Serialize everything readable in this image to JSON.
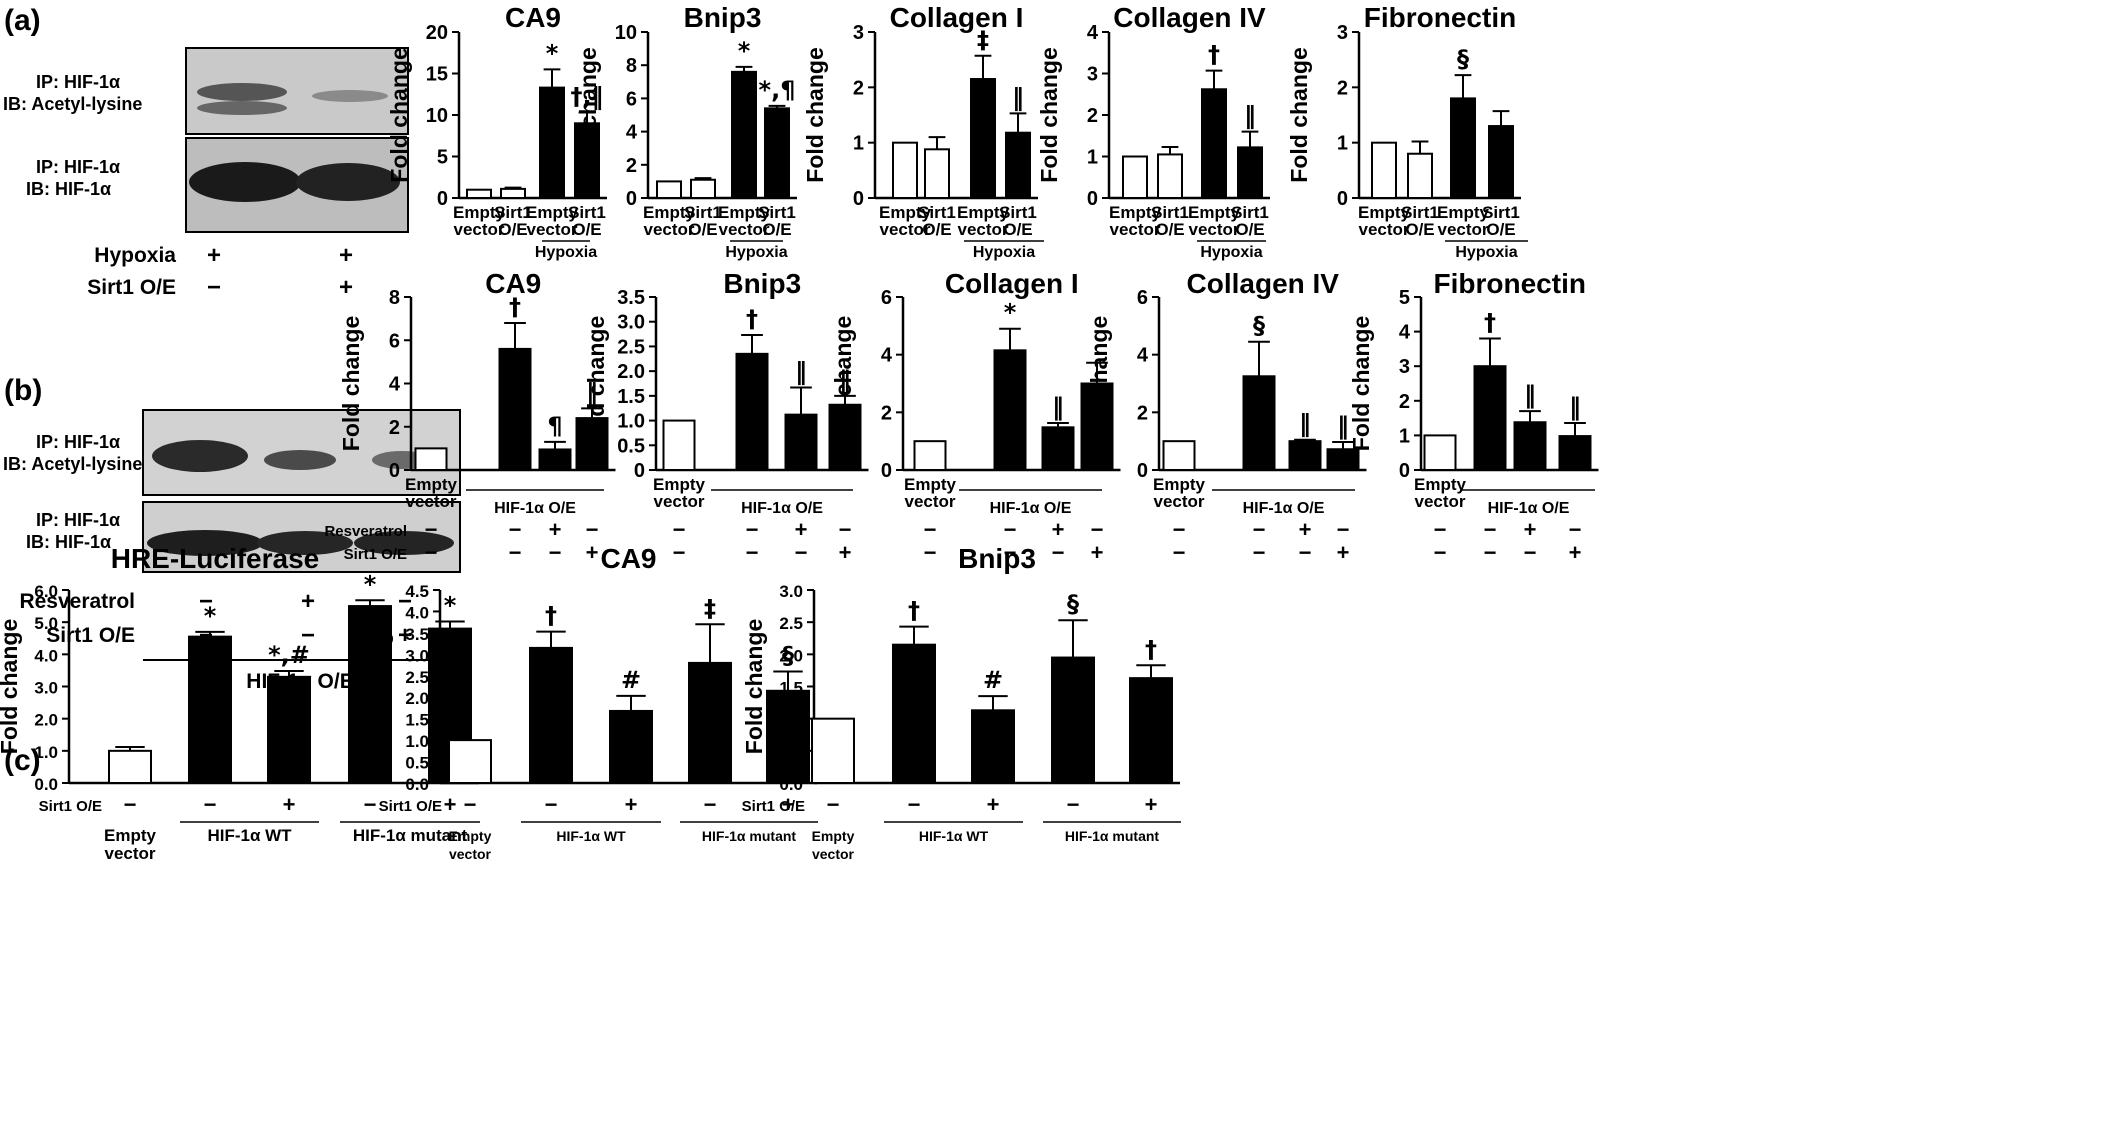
{
  "panels": [
    {
      "label": "(a)"
    },
    {
      "label": "(b)"
    },
    {
      "label": "(c)"
    }
  ],
  "blots": [
    {
      "id": "a",
      "rows": [
        {
          "ip": "IP: HIF-1α",
          "ib": "IB: Acetyl-lysine"
        },
        {
          "ip": "IP: HIF-1α",
          "ib": "IB: HIF-1α"
        }
      ],
      "treatments": [
        {
          "name": "Hypoxia",
          "marks": [
            "+",
            "+"
          ]
        },
        {
          "name": "Sirt1 O/E",
          "marks": [
            "−",
            "+"
          ]
        }
      ],
      "group": ""
    },
    {
      "id": "b",
      "rows": [
        {
          "ip": "IP: HIF-1α",
          "ib": "IB: Acetyl-lysine"
        },
        {
          "ip": "IP: HIF-1α",
          "ib": "IB: HIF-1α"
        }
      ],
      "treatments": [
        {
          "name": "Resveratrol",
          "marks": [
            "−",
            "+",
            "−"
          ]
        },
        {
          "name": "Sirt1 O/E",
          "marks": [
            "−",
            "−",
            "+"
          ]
        }
      ],
      "group": "HIF-1α O/E"
    }
  ],
  "chart_data": [
    {
      "id": "a1",
      "type": "bar",
      "title": "CA9",
      "ylabel": "Fold change",
      "ylim": [
        0,
        20
      ],
      "yticks": [
        "0",
        "5",
        "10",
        "15",
        "20"
      ],
      "categories": [
        "Empty vector",
        "Sirt1 O/E",
        "Empty vector",
        "Sirt1 O/E"
      ],
      "values": [
        1.0,
        1.1,
        13.3,
        9.0
      ],
      "errors": [
        0,
        0.15,
        2.2,
        1.3
      ],
      "fills": [
        "#ffffff",
        "#ffffff",
        "#000000",
        "#000000"
      ],
      "signif": [
        "",
        "",
        "*",
        "†,‖"
      ],
      "group_label": "Hypoxia"
    },
    {
      "id": "a2",
      "type": "bar",
      "title": "Bnip3",
      "ylabel": "Fold change",
      "ylim": [
        0,
        10
      ],
      "yticks": [
        "0",
        "2",
        "4",
        "6",
        "8",
        "10"
      ],
      "categories": [
        "Empty vector",
        "Sirt1 O/E",
        "Empty vector",
        "Sirt1 O/E"
      ],
      "values": [
        1.0,
        1.1,
        7.6,
        5.4
      ],
      "errors": [
        0,
        0.1,
        0.3,
        0.15
      ],
      "fills": [
        "#ffffff",
        "#ffffff",
        "#000000",
        "#000000"
      ],
      "signif": [
        "",
        "",
        "*",
        "*,¶"
      ],
      "group_label": "Hypoxia"
    },
    {
      "id": "a3",
      "type": "bar",
      "title": "Collagen I",
      "ylabel": "Fold change",
      "ylim": [
        0,
        3
      ],
      "yticks": [
        "0",
        "1",
        "2",
        "3"
      ],
      "categories": [
        "Empty vector",
        "Sirt1 O/E",
        "Empty vector",
        "Sirt1 O/E"
      ],
      "values": [
        1.0,
        0.88,
        2.15,
        1.18
      ],
      "errors": [
        0,
        0.22,
        0.42,
        0.35
      ],
      "fills": [
        "#ffffff",
        "#ffffff",
        "#000000",
        "#000000"
      ],
      "signif": [
        "",
        "",
        "‡",
        "‖"
      ],
      "group_label": "Hypoxia"
    },
    {
      "id": "a4",
      "type": "bar",
      "title": "Collagen IV",
      "ylabel": "Fold change",
      "ylim": [
        0,
        4
      ],
      "yticks": [
        "0",
        "1",
        "2",
        "3",
        "4"
      ],
      "categories": [
        "Empty vector",
        "Sirt1 O/E",
        "Empty vector",
        "Sirt1 O/E"
      ],
      "values": [
        1.0,
        1.05,
        2.62,
        1.22
      ],
      "errors": [
        0,
        0.18,
        0.45,
        0.38
      ],
      "fills": [
        "#ffffff",
        "#ffffff",
        "#000000",
        "#000000"
      ],
      "signif": [
        "",
        "",
        "†",
        "‖"
      ],
      "group_label": "Hypoxia"
    },
    {
      "id": "a5",
      "type": "bar",
      "title": "Fibronectin",
      "ylabel": "Fold change",
      "ylim": [
        0,
        3
      ],
      "yticks": [
        "0",
        "1",
        "2",
        "3"
      ],
      "categories": [
        "Empty vector",
        "Sirt1 O/E",
        "Empty vector",
        "Sirt1 O/E"
      ],
      "values": [
        1.0,
        0.8,
        1.8,
        1.3
      ],
      "errors": [
        0,
        0.22,
        0.42,
        0.27
      ],
      "fills": [
        "#ffffff",
        "#ffffff",
        "#000000",
        "#000000"
      ],
      "signif": [
        "",
        "",
        "§",
        ""
      ],
      "group_label": "Hypoxia"
    },
    {
      "id": "b1",
      "type": "bar",
      "title": "CA9",
      "ylabel": "Fold change",
      "ylim": [
        0,
        8
      ],
      "yticks": [
        "0",
        "2",
        "4",
        "6",
        "8"
      ],
      "categories": [
        "Empty vector",
        "",
        "",
        ""
      ],
      "values": [
        1.0,
        5.6,
        0.95,
        2.4
      ],
      "errors": [
        0,
        1.2,
        0.35,
        0.45
      ],
      "fills": [
        "#ffffff",
        "#000000",
        "#000000",
        "#000000"
      ],
      "signif": [
        "",
        "†",
        "¶",
        "‖"
      ],
      "group_label": "HIF-1α  O/E",
      "treatments": [
        {
          "name": "Resveratrol",
          "marks": [
            "−",
            "−",
            "+",
            "−"
          ]
        },
        {
          "name": "Sirt1 O/E",
          "marks": [
            "−",
            "−",
            "−",
            "+"
          ]
        }
      ]
    },
    {
      "id": "b2",
      "type": "bar",
      "title": "Bnip3",
      "ylabel": "Fold change",
      "ylim": [
        0,
        3.5
      ],
      "yticks": [
        "0",
        "0.5",
        "1.0",
        "1.5",
        "2.0",
        "2.5",
        "3.0",
        "3.5"
      ],
      "categories": [
        "",
        "",
        "",
        ""
      ],
      "values": [
        1.0,
        2.35,
        1.12,
        1.32
      ],
      "errors": [
        0,
        0.38,
        0.55,
        0.18
      ],
      "fills": [
        "#ffffff",
        "#000000",
        "#000000",
        "#000000"
      ],
      "signif": [
        "",
        "†",
        "‖",
        "‖"
      ],
      "group_label": "HIF-1α  O/E",
      "treatments": [
        {
          "name": "",
          "marks": [
            "−",
            "−",
            "+",
            "−"
          ]
        },
        {
          "name": "",
          "marks": [
            "−",
            "−",
            "−",
            "+"
          ]
        }
      ]
    },
    {
      "id": "b3",
      "type": "bar",
      "title": "Collagen I",
      "ylabel": "Fold change",
      "ylim": [
        0,
        6
      ],
      "yticks": [
        "0",
        "2",
        "4",
        "6"
      ],
      "categories": [
        "Empty vector",
        "",
        "",
        ""
      ],
      "values": [
        1.0,
        4.15,
        1.48,
        3.0
      ],
      "errors": [
        0,
        0.75,
        0.15,
        0.72
      ],
      "fills": [
        "#ffffff",
        "#000000",
        "#000000",
        "#000000"
      ],
      "signif": [
        "",
        "*",
        "‖",
        ""
      ],
      "group_label": "HIF-1α  O/E",
      "treatments": [
        {
          "name": "",
          "marks": [
            "−",
            "−",
            "+",
            "−"
          ]
        },
        {
          "name": "",
          "marks": [
            "−",
            "−",
            "−",
            "+"
          ]
        }
      ]
    },
    {
      "id": "b4",
      "type": "bar",
      "title": "Collagen IV",
      "ylabel": "Fold change",
      "ylim": [
        0,
        6
      ],
      "yticks": [
        "0",
        "2",
        "4",
        "6"
      ],
      "categories": [
        "Empty vector",
        "",
        "",
        ""
      ],
      "values": [
        1.0,
        3.25,
        1.0,
        0.72
      ],
      "errors": [
        0,
        1.2,
        0.05,
        0.25
      ],
      "fills": [
        "#ffffff",
        "#000000",
        "#000000",
        "#000000"
      ],
      "signif": [
        "",
        "§",
        "‖",
        "‖"
      ],
      "group_label": "HIF-1α  O/E",
      "treatments": [
        {
          "name": "",
          "marks": [
            "−",
            "−",
            "+",
            "−"
          ]
        },
        {
          "name": "",
          "marks": [
            "−",
            "−",
            "−",
            "+"
          ]
        }
      ]
    },
    {
      "id": "b5",
      "type": "bar",
      "title": "Fibronectin",
      "ylabel": "Fold change",
      "ylim": [
        0,
        5
      ],
      "yticks": [
        "0",
        "1",
        "2",
        "3",
        "4",
        "5"
      ],
      "categories": [
        "Empty vector",
        "",
        "",
        ""
      ],
      "values": [
        1.0,
        3.0,
        1.38,
        0.98
      ],
      "errors": [
        0,
        0.8,
        0.32,
        0.38
      ],
      "fills": [
        "#ffffff",
        "#000000",
        "#000000",
        "#000000"
      ],
      "signif": [
        "",
        "†",
        "‖",
        "‖"
      ],
      "group_label": "HIF-1α  O/E",
      "treatments": [
        {
          "name": "",
          "marks": [
            "−",
            "−",
            "+",
            "−"
          ]
        },
        {
          "name": "",
          "marks": [
            "−",
            "−",
            "−",
            "+"
          ]
        }
      ]
    },
    {
      "id": "c1",
      "type": "bar",
      "title": "HRE-Luciferase",
      "ylabel": "Fold change",
      "ylim": [
        0,
        6
      ],
      "yticks": [
        "0.0",
        "1.0",
        "2.0",
        "3.0",
        "4.0",
        "5.0",
        "6.0"
      ],
      "categories": [
        "Empty vector",
        "",
        "",
        "",
        ""
      ],
      "values": [
        1.0,
        4.55,
        3.3,
        5.5,
        4.8
      ],
      "errors": [
        0.12,
        0.15,
        0.18,
        0.18,
        0.22
      ],
      "fills": [
        "#ffffff",
        "#000000",
        "#000000",
        "#000000",
        "#000000"
      ],
      "signif": [
        "",
        "*",
        "*,#",
        "*",
        "*"
      ],
      "groups": [
        "HIF-1α WT",
        "HIF-1α mutant"
      ],
      "treatments": [
        {
          "name": "Sirt1 O/E",
          "marks": [
            "−",
            "−",
            "+",
            "−",
            "+"
          ]
        }
      ]
    },
    {
      "id": "c2",
      "type": "bar",
      "title": "CA9",
      "ylabel": "Fold change",
      "ylim": [
        0,
        4.5
      ],
      "yticks": [
        "0.0",
        "0.5",
        "1.0",
        "1.5",
        "2.0",
        "2.5",
        "3.0",
        "3.5",
        "4.0",
        "4.5"
      ],
      "categories": [
        "Empty vector",
        "",
        "",
        "",
        ""
      ],
      "values": [
        1.0,
        3.15,
        1.68,
        2.8,
        2.15
      ],
      "errors": [
        0,
        0.38,
        0.35,
        0.9,
        0.45
      ],
      "fills": [
        "#ffffff",
        "#000000",
        "#000000",
        "#000000",
        "#000000"
      ],
      "signif": [
        "",
        "†",
        "#",
        "‡",
        "§"
      ],
      "groups": [
        "HIF-1α WT",
        "HIF-1α mutant"
      ],
      "treatments": [
        {
          "name": "Sirt1 O/E",
          "marks": [
            "−",
            "−",
            "+",
            "−",
            "+"
          ]
        }
      ]
    },
    {
      "id": "c3",
      "type": "bar",
      "title": "Bnip3",
      "ylabel": "Fold change",
      "ylim": [
        0,
        3.0
      ],
      "yticks": [
        "0.0",
        "0.5",
        "1.0",
        "1.5",
        "2.0",
        "2.5",
        "3.0"
      ],
      "categories": [
        "Empty vector",
        "",
        "",
        "",
        ""
      ],
      "values": [
        1.0,
        2.15,
        1.13,
        1.95,
        1.63
      ],
      "errors": [
        0,
        0.28,
        0.22,
        0.58,
        0.2
      ],
      "fills": [
        "#ffffff",
        "#000000",
        "#000000",
        "#000000",
        "#000000"
      ],
      "signif": [
        "",
        "†",
        "#",
        "§",
        "†"
      ],
      "groups": [
        "HIF-1α WT",
        "HIF-1α mutant"
      ],
      "treatments": [
        {
          "name": "Sirt1 O/E",
          "marks": [
            "−",
            "−",
            "+",
            "−",
            "+"
          ]
        }
      ]
    }
  ]
}
